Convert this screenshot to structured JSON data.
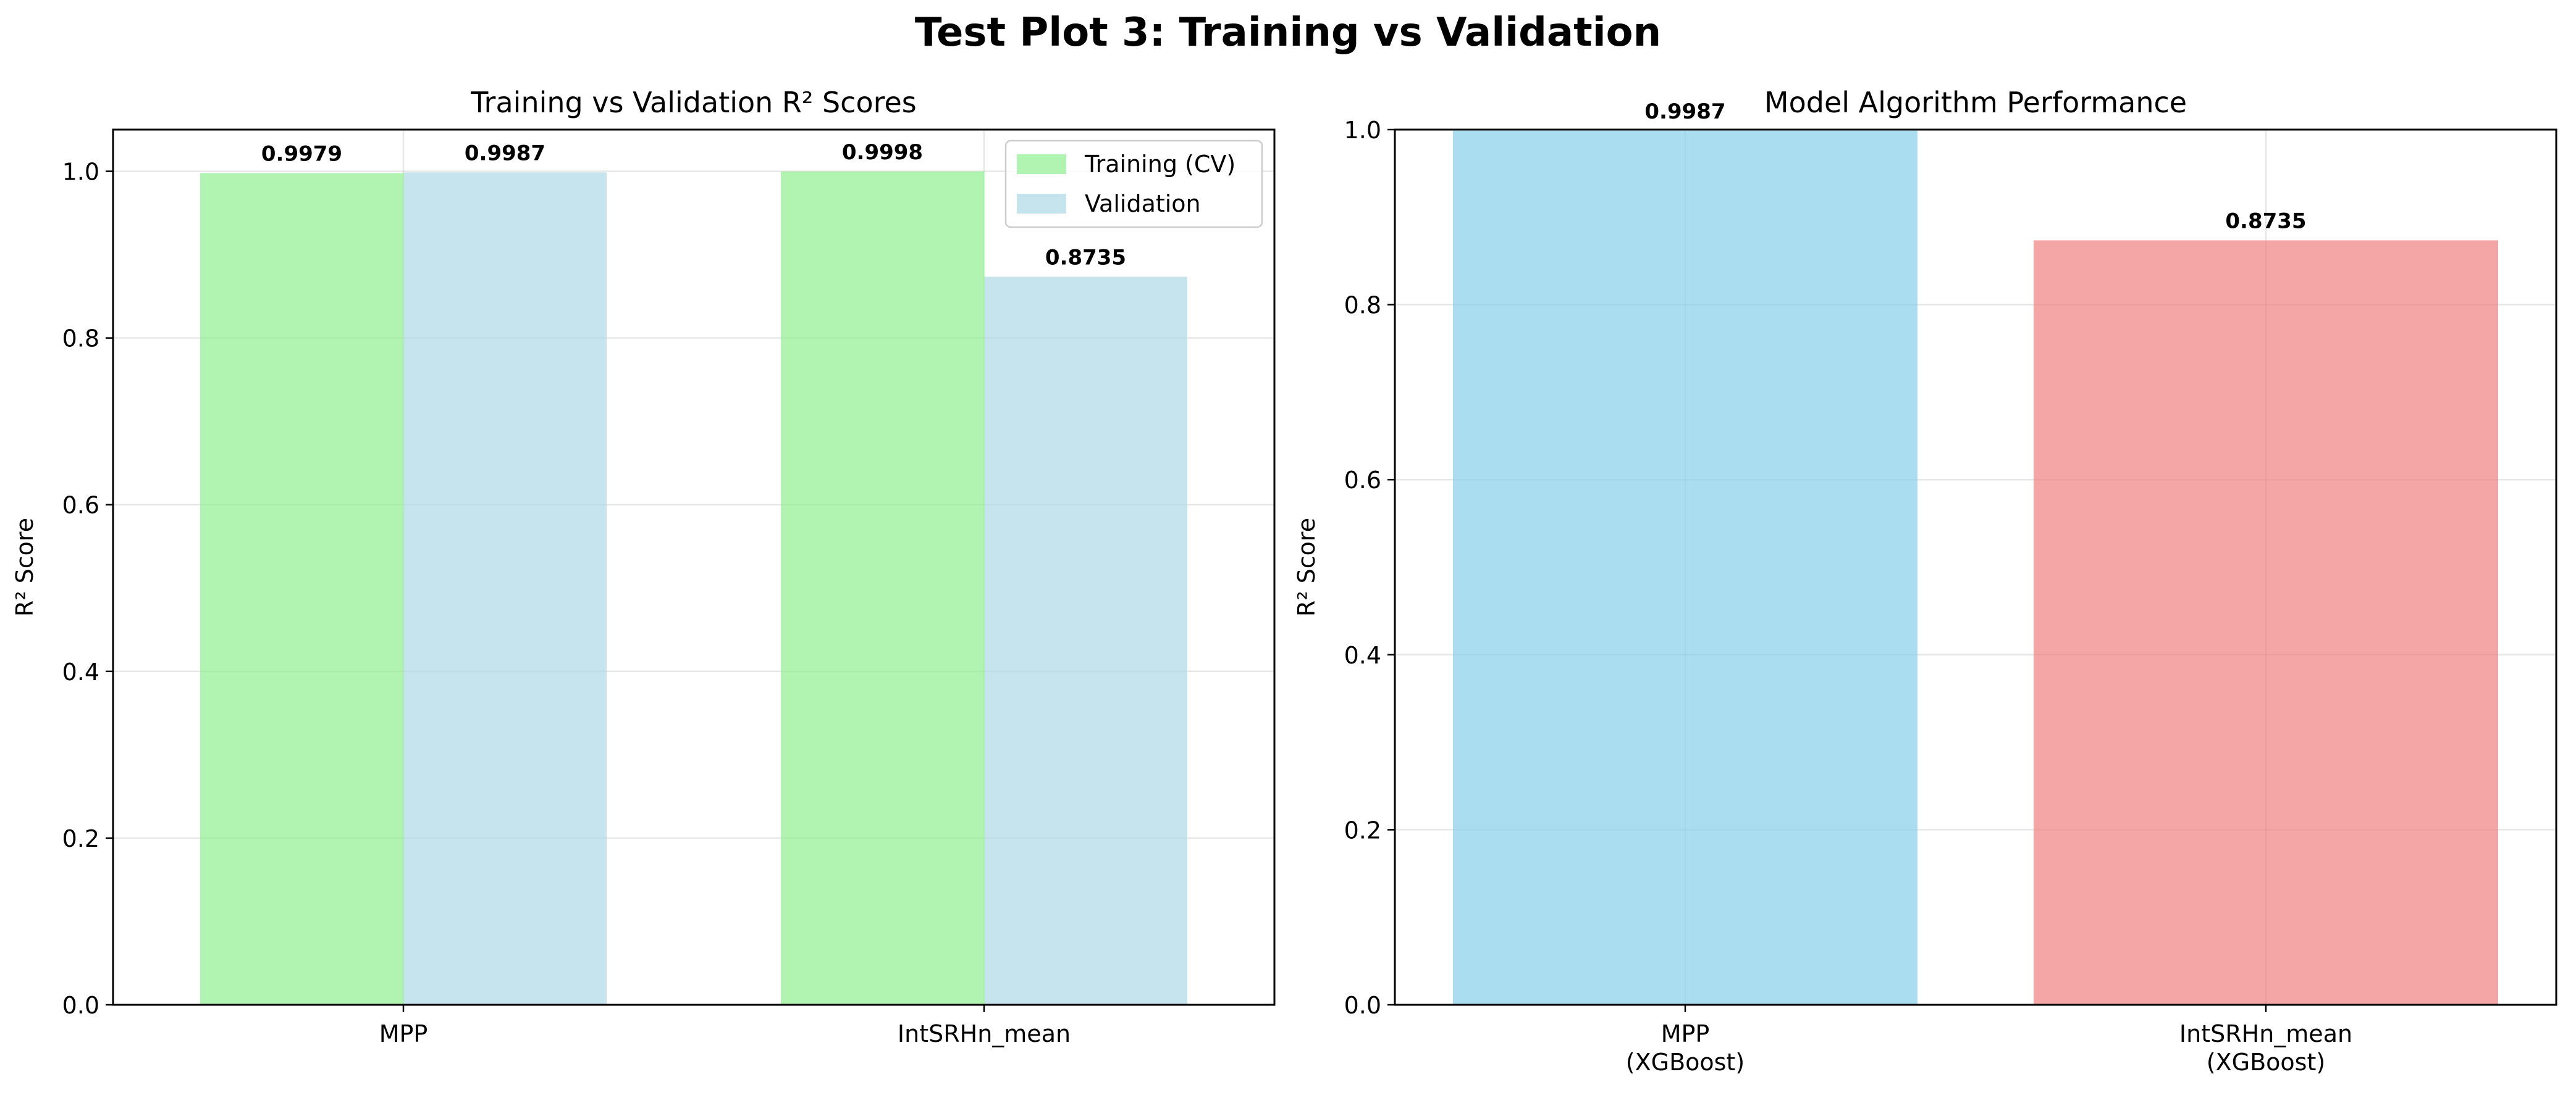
{
  "figure": {
    "title": "Test Plot 3: Training vs Validation"
  },
  "chart_data": [
    {
      "type": "bar",
      "title": "Training vs Validation R² Scores",
      "xlabel": "",
      "ylabel": "R² Score",
      "ylim": [
        0,
        1.05
      ],
      "yticks": [
        0.0,
        0.2,
        0.4,
        0.6,
        0.8,
        1.0
      ],
      "ytick_labels": [
        "0.0",
        "0.2",
        "0.4",
        "0.6",
        "0.8",
        "1.0"
      ],
      "categories": [
        "MPP",
        "IntSRHn_mean"
      ],
      "series": [
        {
          "name": "Training (CV)",
          "values": [
            0.9979,
            0.9998
          ],
          "labels": [
            "0.9979",
            "0.9998"
          ],
          "color": "#90ee90",
          "alpha": 0.7
        },
        {
          "name": "Validation",
          "values": [
            0.9987,
            0.8735
          ],
          "labels": [
            "0.9987",
            "0.8735"
          ],
          "color": "#add8e6",
          "alpha": 0.7
        }
      ],
      "grid": true,
      "legend": "top-right"
    },
    {
      "type": "bar",
      "title": "Model Algorithm Performance",
      "xlabel": "",
      "ylabel": "R² Score",
      "ylim": [
        0,
        1.0
      ],
      "yticks": [
        0.0,
        0.2,
        0.4,
        0.6,
        0.8,
        1.0
      ],
      "ytick_labels": [
        "0.0",
        "0.2",
        "0.4",
        "0.6",
        "0.8",
        "1.0"
      ],
      "categories": [
        [
          "MPP",
          "(XGBoost)"
        ],
        [
          "IntSRHn_mean",
          "(XGBoost)"
        ]
      ],
      "values": [
        0.9987,
        0.8735
      ],
      "labels": [
        "0.9987",
        "0.8735"
      ],
      "colors": [
        "#87ceeb",
        "#f08080"
      ],
      "alpha": 0.7,
      "grid": true
    }
  ]
}
